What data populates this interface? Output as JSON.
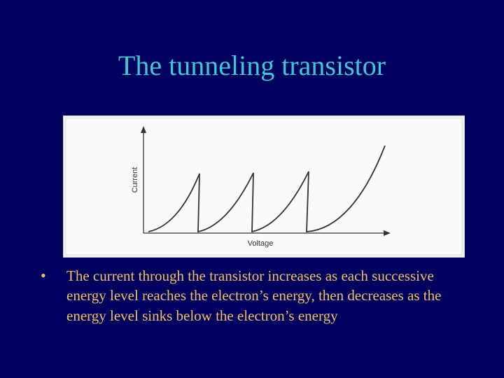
{
  "title": "The tunneling transistor",
  "figure": {
    "y_label": "Current",
    "x_label": "Voltage"
  },
  "bullet": {
    "marker": "•",
    "lines": [
      "The current through the transistor increases as each successive",
      "energy level reaches the electron’s energy, then decreases as the",
      "energy level sinks below the electron’s energy"
    ]
  }
}
